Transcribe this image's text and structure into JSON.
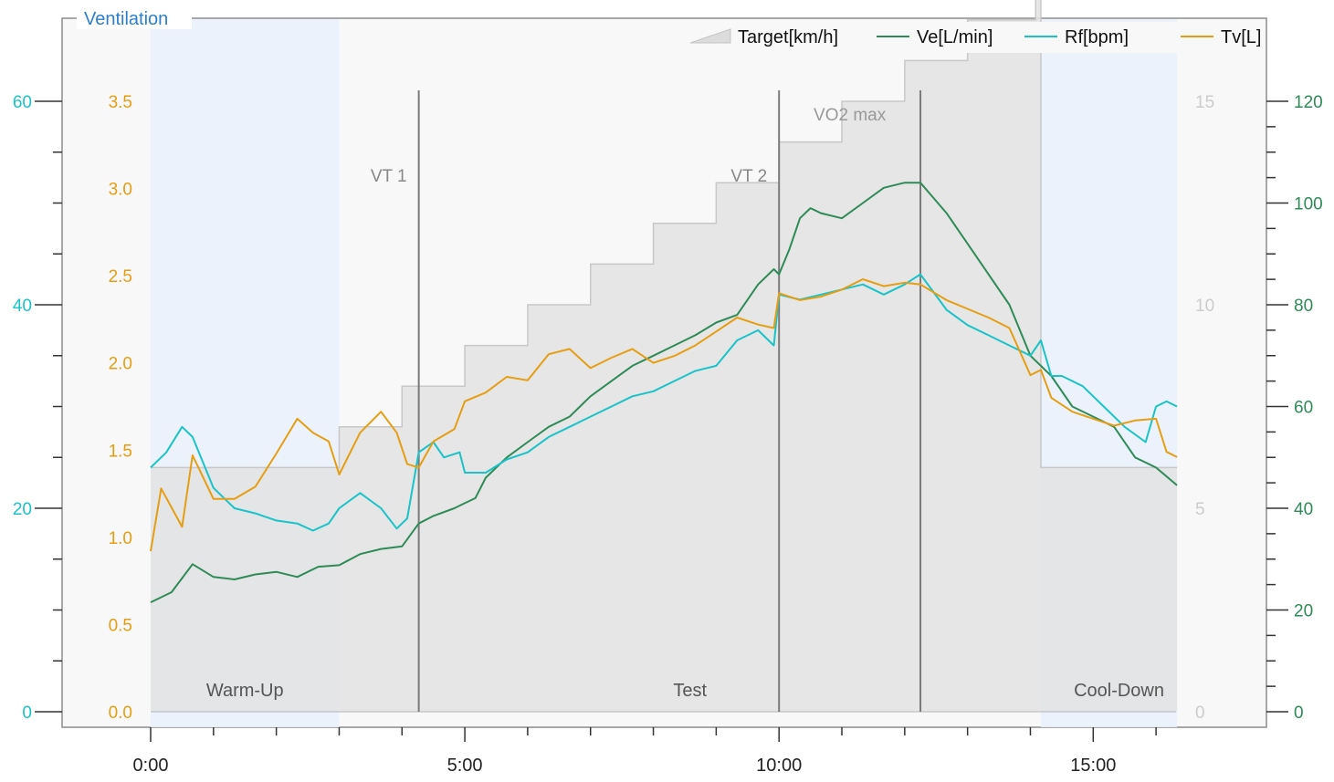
{
  "chart_data": {
    "type": "line",
    "title": "Ventilation",
    "x_axis": {
      "unit": "min:sec",
      "range_seconds": [
        -82,
        1007
      ],
      "ticks": [
        {
          "value": 0,
          "label": "0:00"
        },
        {
          "value": 300,
          "label": "5:00"
        },
        {
          "value": 600,
          "label": "10:00"
        },
        {
          "value": 900,
          "label": "15:00"
        }
      ],
      "minor_tick_interval_seconds": 60
    },
    "axes": {
      "rf": {
        "side": "left-outer",
        "color": "#19c3c8",
        "ylim": [
          0,
          60
        ],
        "ticks": [
          "0",
          "20",
          "40",
          "60"
        ]
      },
      "tv": {
        "side": "left-inner",
        "color": "#e59e12",
        "ylim": [
          0,
          3.5
        ],
        "ticks": [
          "0.0",
          "0.5",
          "1.0",
          "1.5",
          "2.0",
          "2.5",
          "3.0",
          "3.5"
        ]
      },
      "target": {
        "side": "right-inner",
        "color": "#cccccc",
        "ylim": [
          0,
          15
        ],
        "ticks": [
          "0",
          "5",
          "10",
          "15"
        ]
      },
      "ve": {
        "side": "right-outer",
        "color": "#2e8b57",
        "ylim": [
          0,
          120
        ],
        "ticks": [
          "0",
          "20",
          "40",
          "60",
          "80",
          "100",
          "120"
        ]
      }
    },
    "phases": [
      {
        "label": "Warm-Up",
        "start_seconds": 0,
        "end_seconds": 180,
        "shaded": true
      },
      {
        "label": "Test",
        "start_seconds": 180,
        "end_seconds": 850,
        "shaded": false
      },
      {
        "label": "Cool-Down",
        "start_seconds": 850,
        "end_seconds": 980,
        "shaded": true
      }
    ],
    "markers": [
      {
        "label": "VT 1",
        "x_seconds": 256
      },
      {
        "label": "VT 2",
        "x_seconds": 600
      },
      {
        "label": "",
        "x_seconds": 735
      }
    ],
    "vo2max_label": "VO2 max",
    "legend": {
      "position": "top-right",
      "entries": [
        "Target[km/h]",
        "Ve[L/min]",
        "Rf[bpm]",
        "Tv[L]"
      ]
    },
    "series": [
      {
        "name": "Target[km/h]",
        "key": "target",
        "style": "step-area",
        "color": "#c8c8c8",
        "fill": "#e3e3e3",
        "steps": [
          {
            "start": 0,
            "end": 180,
            "value": 6
          },
          {
            "start": 180,
            "end": 240,
            "value": 7
          },
          {
            "start": 240,
            "end": 300,
            "value": 8
          },
          {
            "start": 300,
            "end": 360,
            "value": 9
          },
          {
            "start": 360,
            "end": 420,
            "value": 10
          },
          {
            "start": 420,
            "end": 480,
            "value": 11
          },
          {
            "start": 480,
            "end": 540,
            "value": 12
          },
          {
            "start": 540,
            "end": 600,
            "value": 13
          },
          {
            "start": 600,
            "end": 660,
            "value": 14
          },
          {
            "start": 660,
            "end": 720,
            "value": 15
          },
          {
            "start": 720,
            "end": 780,
            "value": 16
          },
          {
            "start": 780,
            "end": 845,
            "value": 17
          },
          {
            "start": 845,
            "end": 850,
            "value": 18
          },
          {
            "start": 850,
            "end": 980,
            "value": 6
          }
        ]
      },
      {
        "name": "Ve[L/min]",
        "key": "ve",
        "color": "#2e8b57",
        "points": [
          [
            0,
            21.5
          ],
          [
            20,
            23.5
          ],
          [
            40,
            29
          ],
          [
            60,
            26.5
          ],
          [
            80,
            26
          ],
          [
            100,
            27
          ],
          [
            120,
            27.5
          ],
          [
            140,
            26.5
          ],
          [
            160,
            28.5
          ],
          [
            180,
            28.8
          ],
          [
            200,
            31
          ],
          [
            220,
            32
          ],
          [
            240,
            32.5
          ],
          [
            256,
            37
          ],
          [
            270,
            38.5
          ],
          [
            290,
            40
          ],
          [
            300,
            41
          ],
          [
            310,
            42
          ],
          [
            320,
            46
          ],
          [
            340,
            50
          ],
          [
            360,
            53
          ],
          [
            380,
            56
          ],
          [
            400,
            58
          ],
          [
            420,
            62
          ],
          [
            440,
            65
          ],
          [
            460,
            68
          ],
          [
            480,
            70
          ],
          [
            500,
            72
          ],
          [
            520,
            74
          ],
          [
            540,
            76.5
          ],
          [
            560,
            78
          ],
          [
            580,
            84
          ],
          [
            595,
            87
          ],
          [
            600,
            86
          ],
          [
            610,
            91
          ],
          [
            620,
            97
          ],
          [
            630,
            99
          ],
          [
            640,
            98
          ],
          [
            660,
            97
          ],
          [
            680,
            100
          ],
          [
            700,
            103
          ],
          [
            720,
            104
          ],
          [
            735,
            104
          ],
          [
            760,
            98
          ],
          [
            780,
            92
          ],
          [
            800,
            86
          ],
          [
            820,
            80
          ],
          [
            840,
            70
          ],
          [
            860,
            66
          ],
          [
            880,
            60
          ],
          [
            900,
            58
          ],
          [
            920,
            56
          ],
          [
            940,
            50
          ],
          [
            960,
            48
          ],
          [
            980,
            44.5
          ]
        ]
      },
      {
        "name": "Rf[bpm]",
        "key": "rf",
        "color": "#19c3c8",
        "points": [
          [
            0,
            24
          ],
          [
            15,
            25.5
          ],
          [
            30,
            28
          ],
          [
            40,
            27
          ],
          [
            60,
            22
          ],
          [
            80,
            20
          ],
          [
            100,
            19.5
          ],
          [
            120,
            18.8
          ],
          [
            140,
            18.5
          ],
          [
            155,
            17.8
          ],
          [
            170,
            18.5
          ],
          [
            180,
            20
          ],
          [
            200,
            21.5
          ],
          [
            220,
            20
          ],
          [
            235,
            18
          ],
          [
            245,
            19
          ],
          [
            256,
            25.5
          ],
          [
            270,
            26.5
          ],
          [
            280,
            25
          ],
          [
            295,
            25.5
          ],
          [
            300,
            23.5
          ],
          [
            320,
            23.5
          ],
          [
            340,
            24.8
          ],
          [
            360,
            25.5
          ],
          [
            380,
            27
          ],
          [
            400,
            28
          ],
          [
            420,
            29
          ],
          [
            440,
            30
          ],
          [
            460,
            31
          ],
          [
            480,
            31.5
          ],
          [
            500,
            32.5
          ],
          [
            520,
            33.5
          ],
          [
            540,
            34
          ],
          [
            560,
            36.5
          ],
          [
            580,
            37.5
          ],
          [
            595,
            36
          ],
          [
            600,
            41
          ],
          [
            620,
            40.5
          ],
          [
            640,
            41
          ],
          [
            660,
            41.5
          ],
          [
            680,
            42
          ],
          [
            700,
            41
          ],
          [
            720,
            42
          ],
          [
            735,
            43
          ],
          [
            760,
            39.5
          ],
          [
            780,
            38
          ],
          [
            800,
            37
          ],
          [
            820,
            36
          ],
          [
            840,
            35
          ],
          [
            850,
            36.5
          ],
          [
            860,
            33
          ],
          [
            870,
            33
          ],
          [
            890,
            32
          ],
          [
            910,
            30
          ],
          [
            930,
            28
          ],
          [
            950,
            26.5
          ],
          [
            960,
            30
          ],
          [
            970,
            30.5
          ],
          [
            980,
            30
          ]
        ]
      },
      {
        "name": "Tv[L]",
        "key": "tv",
        "color": "#e59e12",
        "points": [
          [
            0,
            0.92
          ],
          [
            10,
            1.28
          ],
          [
            30,
            1.06
          ],
          [
            40,
            1.47
          ],
          [
            60,
            1.22
          ],
          [
            80,
            1.22
          ],
          [
            100,
            1.29
          ],
          [
            120,
            1.48
          ],
          [
            140,
            1.68
          ],
          [
            155,
            1.6
          ],
          [
            170,
            1.55
          ],
          [
            180,
            1.36
          ],
          [
            200,
            1.6
          ],
          [
            220,
            1.72
          ],
          [
            235,
            1.6
          ],
          [
            245,
            1.42
          ],
          [
            256,
            1.4
          ],
          [
            270,
            1.55
          ],
          [
            290,
            1.62
          ],
          [
            300,
            1.78
          ],
          [
            320,
            1.83
          ],
          [
            340,
            1.92
          ],
          [
            360,
            1.9
          ],
          [
            380,
            2.05
          ],
          [
            400,
            2.08
          ],
          [
            420,
            1.97
          ],
          [
            440,
            2.03
          ],
          [
            460,
            2.08
          ],
          [
            480,
            2.0
          ],
          [
            500,
            2.04
          ],
          [
            520,
            2.1
          ],
          [
            540,
            2.18
          ],
          [
            560,
            2.26
          ],
          [
            580,
            2.22
          ],
          [
            595,
            2.2
          ],
          [
            600,
            2.4
          ],
          [
            620,
            2.36
          ],
          [
            640,
            2.38
          ],
          [
            660,
            2.42
          ],
          [
            680,
            2.48
          ],
          [
            700,
            2.44
          ],
          [
            720,
            2.46
          ],
          [
            735,
            2.45
          ],
          [
            760,
            2.36
          ],
          [
            780,
            2.31
          ],
          [
            800,
            2.26
          ],
          [
            820,
            2.2
          ],
          [
            840,
            1.93
          ],
          [
            850,
            1.96
          ],
          [
            860,
            1.8
          ],
          [
            880,
            1.72
          ],
          [
            900,
            1.68
          ],
          [
            920,
            1.64
          ],
          [
            940,
            1.67
          ],
          [
            960,
            1.68
          ],
          [
            970,
            1.49
          ],
          [
            980,
            1.46
          ]
        ]
      }
    ]
  }
}
